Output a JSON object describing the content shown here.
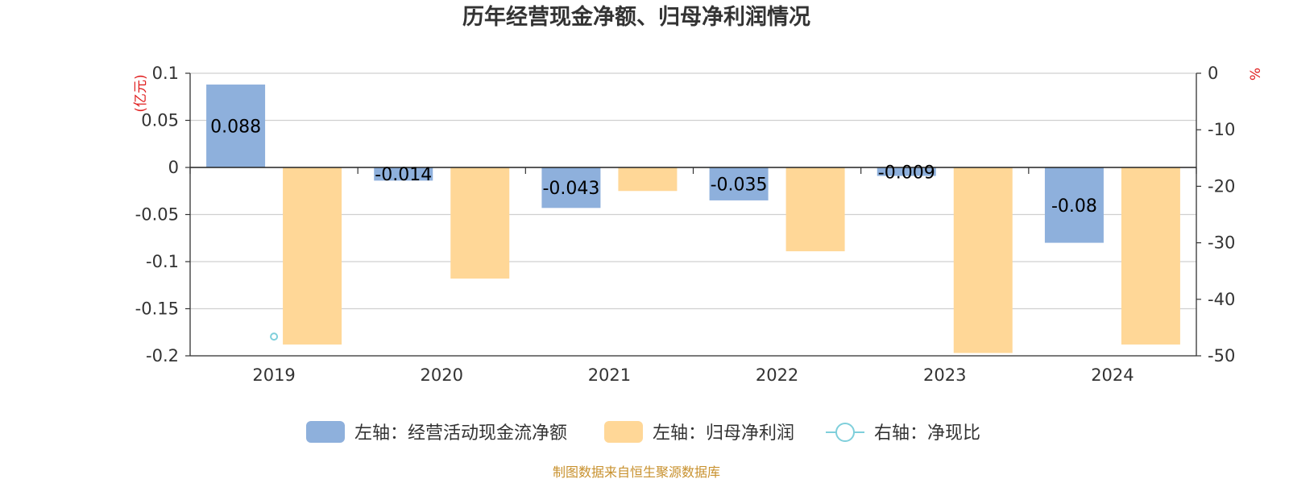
{
  "chart_data": {
    "type": "bar",
    "title": "历年经营现金净额、归母净利润情况",
    "categories": [
      "2019",
      "2020",
      "2021",
      "2022",
      "2023",
      "2024"
    ],
    "series": [
      {
        "name": "左轴：经营活动现金流净额",
        "axis": "left",
        "type": "bar",
        "color": "#8eb0dc",
        "values": [
          0.088,
          -0.014,
          -0.043,
          -0.035,
          -0.009,
          -0.08
        ],
        "labels": [
          "0.088",
          "-0.014",
          "-0.043",
          "-0.035",
          "-0.009",
          "-0.08"
        ]
      },
      {
        "name": "左轴：归母净利润",
        "axis": "left",
        "type": "bar",
        "color": "#ffd797",
        "values": [
          -0.188,
          -0.118,
          -0.025,
          -0.089,
          -0.197,
          -0.188
        ]
      },
      {
        "name": "右轴：净现比",
        "axis": "right",
        "type": "line",
        "color": "#7fcfdb",
        "values": [
          -46.6,
          null,
          null,
          null,
          null,
          null
        ]
      }
    ],
    "left_axis": {
      "unit": "(亿元)",
      "ylim": [
        -0.2,
        0.1
      ],
      "ticks": [
        0.1,
        0.05,
        0,
        -0.05,
        -0.1,
        -0.15,
        -0.2
      ],
      "tick_labels": [
        "0.1",
        "0.05",
        "0",
        "-0.05",
        "-0.1",
        "-0.15",
        "-0.2"
      ]
    },
    "right_axis": {
      "unit": "%",
      "ylim": [
        -50,
        0
      ],
      "ticks": [
        0,
        -10,
        -20,
        -30,
        -40,
        -50
      ],
      "tick_labels": [
        "0",
        "-10",
        "-20",
        "-30",
        "-40",
        "-50"
      ]
    },
    "grid": true,
    "legend_position": "bottom"
  },
  "footer": {
    "source": "制图数据来自恒生聚源数据库"
  }
}
